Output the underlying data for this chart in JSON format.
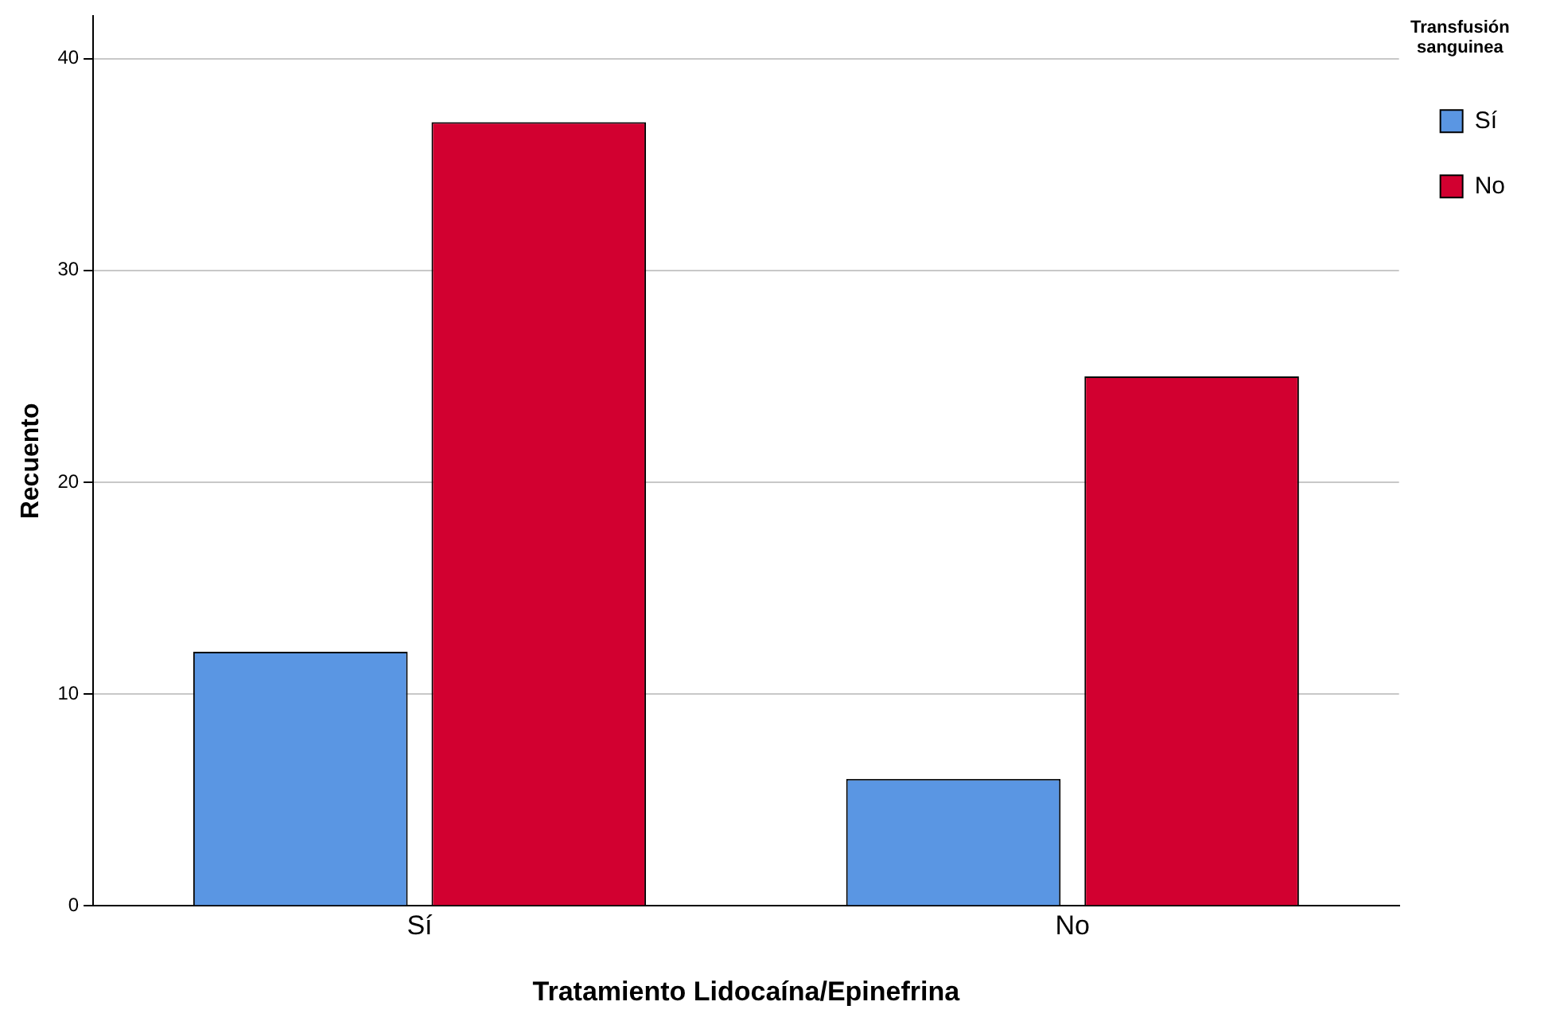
{
  "chart_data": {
    "type": "bar",
    "xlabel": "Tratamiento Lidocaína/Epinefrina",
    "ylabel": "Recuento",
    "legend_title": "Transfusión sanguinea",
    "categories": [
      "Sí",
      "No"
    ],
    "series": [
      {
        "name": "Sí",
        "color": "#5a96e3",
        "values": [
          12,
          6
        ]
      },
      {
        "name": "No",
        "color": "#d20030",
        "values": [
          37,
          25
        ]
      }
    ],
    "ylim": [
      0,
      42
    ],
    "yticks": [
      0,
      10,
      20,
      30,
      40
    ],
    "grid": "y",
    "legend": "top right"
  }
}
